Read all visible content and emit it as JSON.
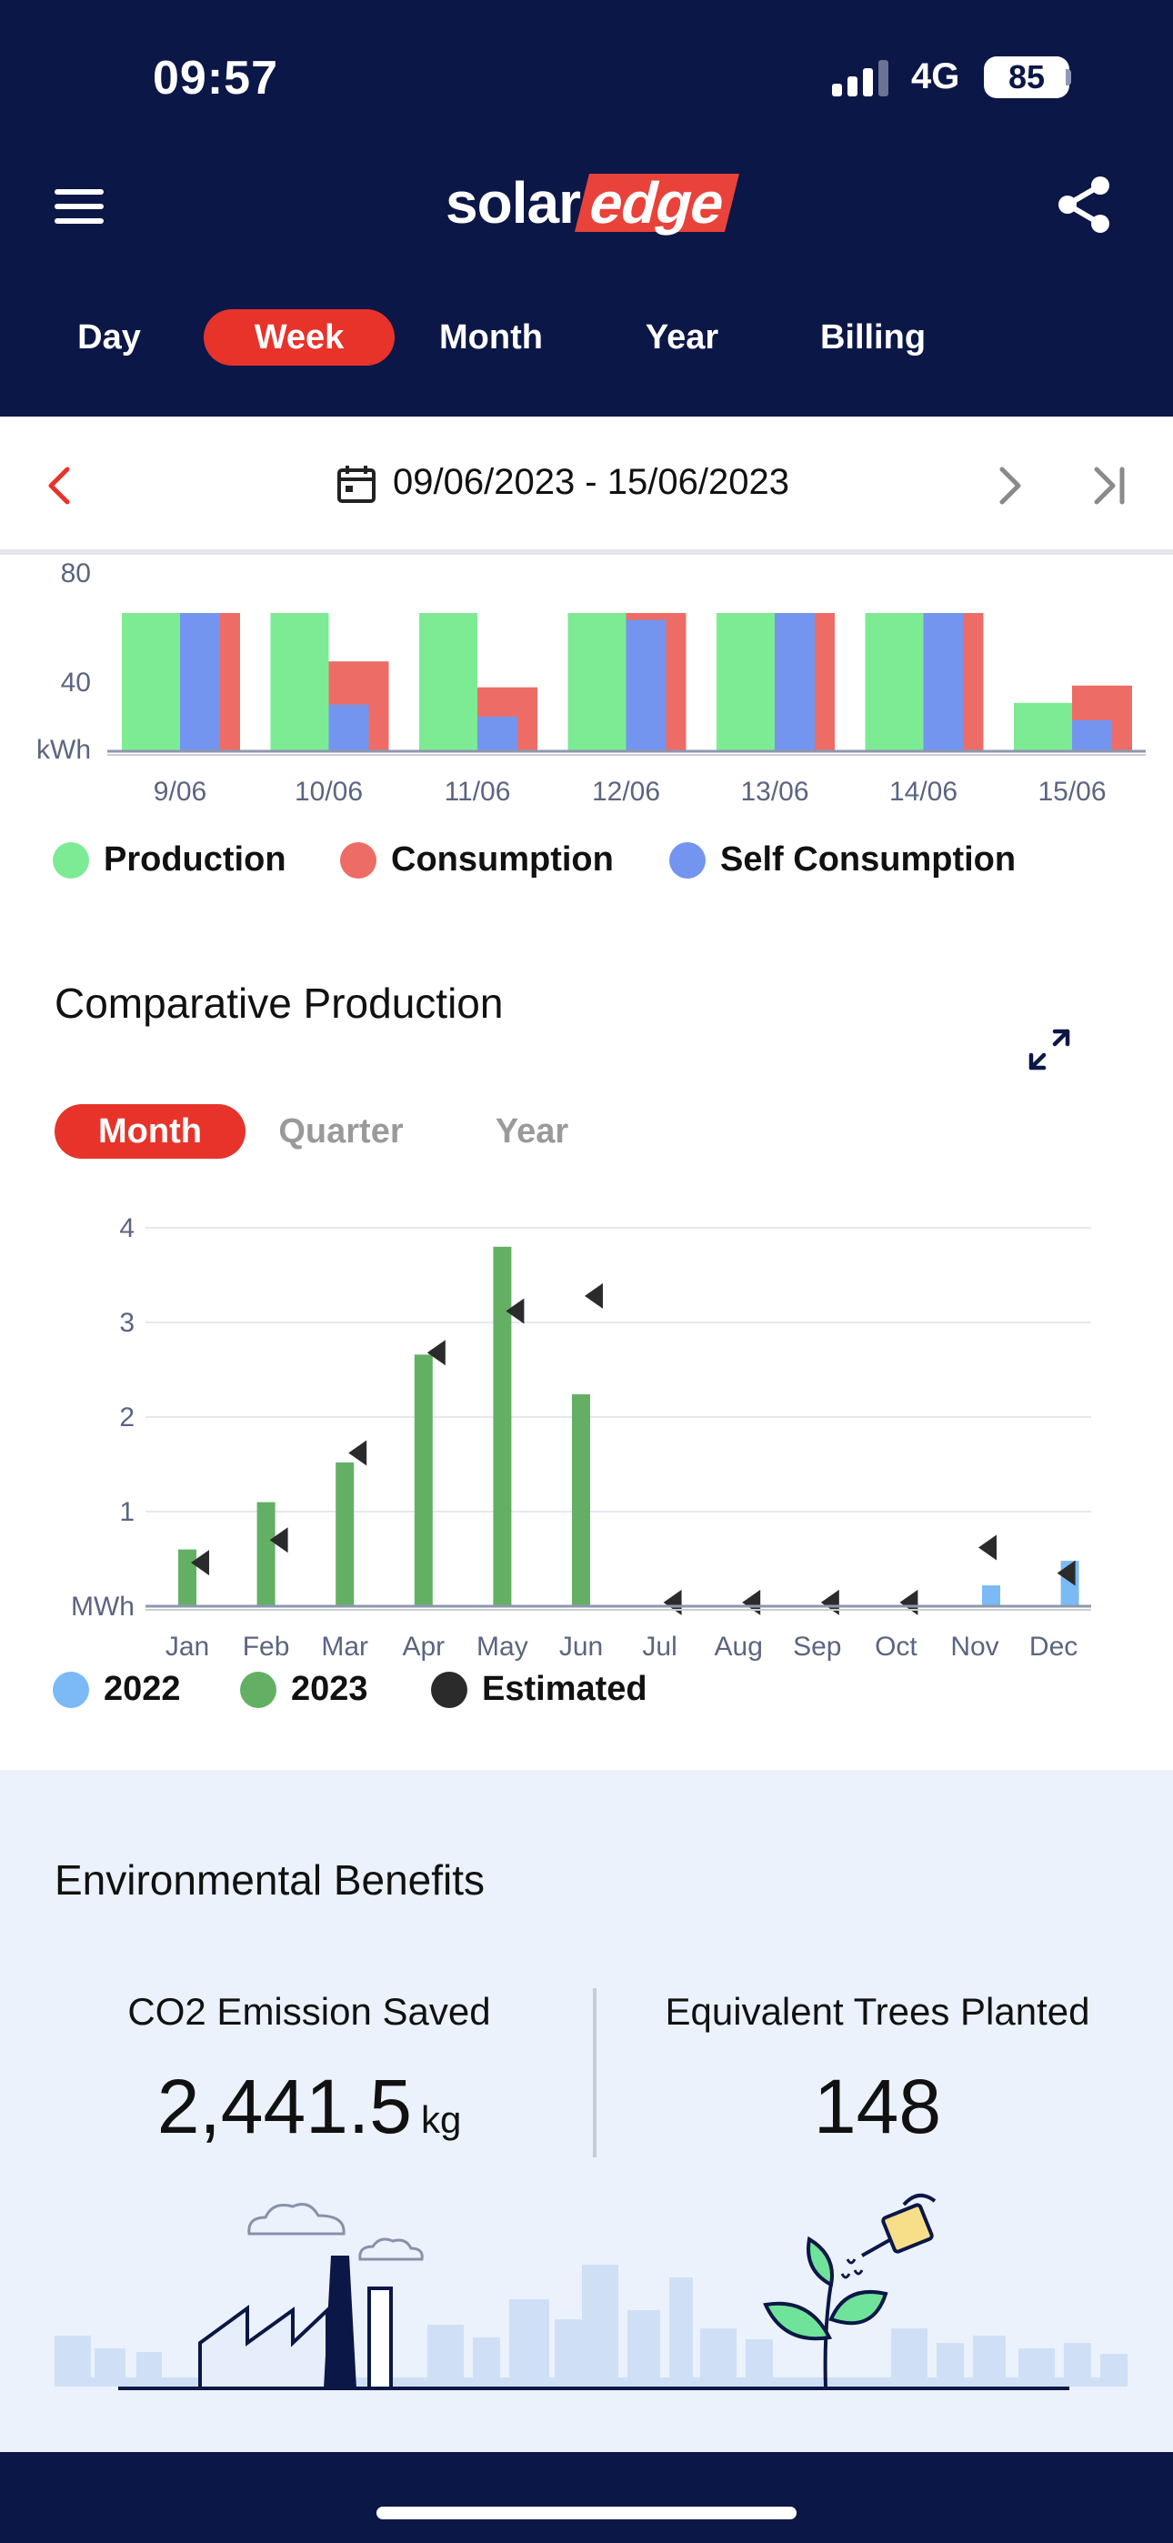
{
  "status": {
    "time": "09:57",
    "network": "4G",
    "battery": "85"
  },
  "header": {
    "logo_solar": "solar",
    "logo_edge": "edge",
    "tabs": [
      "Day",
      "Week",
      "Month",
      "Year",
      "Billing"
    ],
    "active_tab": "Week"
  },
  "date_range": {
    "text": "09/06/2023 - 15/06/2023"
  },
  "weekly": {
    "chart_data": {
      "type": "bar",
      "unit_label": "kWh",
      "visible_ticks": [
        "80",
        "40"
      ],
      "categories": [
        "9/06",
        "10/06",
        "11/06",
        "12/06",
        "13/06",
        "14/06",
        "15/06"
      ],
      "series": [
        {
          "name": "Production",
          "color": "#7deb94",
          "values": [
            80,
            80,
            80,
            80,
            80,
            80,
            28
          ]
        },
        {
          "name": "Self Consumption",
          "color": "#7395f0",
          "values": [
            80,
            27,
            20,
            76,
            80,
            80,
            18
          ]
        },
        {
          "name": "Consumption",
          "color": "#ee6c66",
          "values": [
            80,
            52,
            37,
            80,
            80,
            80,
            38
          ]
        }
      ],
      "ylim": [
        0,
        80
      ]
    },
    "legend": [
      {
        "label": "Production",
        "color": "#7deb94"
      },
      {
        "label": "Consumption",
        "color": "#ee6c66"
      },
      {
        "label": "Self Consumption",
        "color": "#7395f0"
      }
    ]
  },
  "comparative": {
    "title": "Comparative Production",
    "tabs": [
      "Month",
      "Quarter",
      "Year"
    ],
    "active_tab": "Month",
    "chart_data": {
      "type": "bar",
      "unit_label": "MWh",
      "yticks": [
        "1",
        "2",
        "3",
        "4"
      ],
      "ylim": [
        0,
        4
      ],
      "categories": [
        "Jan",
        "Feb",
        "Mar",
        "Apr",
        "May",
        "Jun",
        "Jul",
        "Aug",
        "Sep",
        "Oct",
        "Nov",
        "Dec"
      ],
      "series": [
        {
          "name": "2022",
          "color": "#7bbaf4",
          "values": [
            0,
            0,
            0,
            0,
            0,
            0,
            0,
            0,
            0,
            0,
            0.22,
            0.48
          ]
        },
        {
          "name": "2023",
          "color": "#63b065",
          "values": [
            0.6,
            1.1,
            1.52,
            2.66,
            3.8,
            2.24,
            0,
            0,
            0,
            0,
            0,
            0
          ]
        },
        {
          "name": "Estimated",
          "color": "#2b2b2b",
          "values": [
            0.46,
            0.7,
            1.62,
            2.68,
            3.12,
            3.28,
            0.04,
            0.04,
            0.04,
            0.04,
            0.62,
            0.35
          ]
        }
      ]
    },
    "legend": [
      {
        "label": "2022",
        "color": "#7bbaf4"
      },
      {
        "label": "2023",
        "color": "#63b065"
      },
      {
        "label": "Estimated",
        "color": "#2b2b2b"
      }
    ]
  },
  "environment": {
    "title": "Environmental Benefits",
    "co2_label": "CO2 Emission Saved",
    "co2_value": "2,441.5",
    "co2_unit": "kg",
    "trees_label": "Equivalent Trees Planted",
    "trees_value": "148"
  }
}
